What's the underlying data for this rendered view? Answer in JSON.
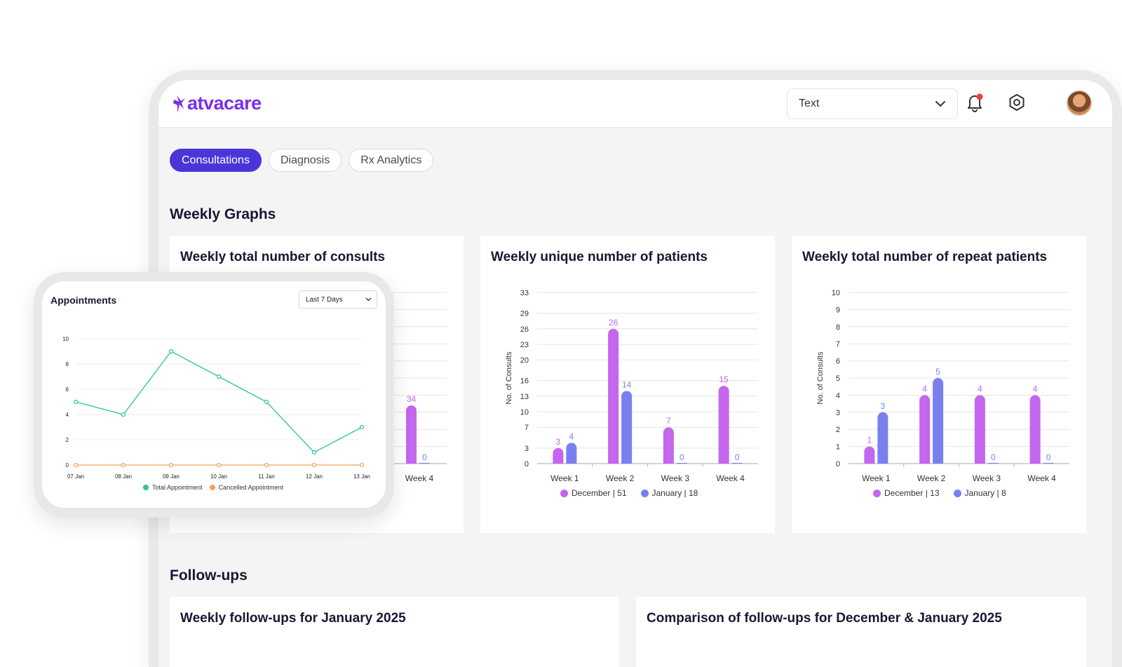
{
  "app": {
    "logo_text": "atvacare"
  },
  "header": {
    "dropdown_value": "Text",
    "icons": [
      "bell-icon",
      "gear-icon",
      "chevron-down-icon"
    ],
    "notification_color": "#ef3b3b"
  },
  "tabs": [
    {
      "label": "Consultations",
      "active": true
    },
    {
      "label": "Diagnosis",
      "active": false
    },
    {
      "label": "Rx Analytics",
      "active": false
    }
  ],
  "sections": {
    "weekly_graphs": "Weekly Graphs",
    "follow_ups": "Follow-ups"
  },
  "colors": {
    "december": "#c466ee",
    "january": "#7a7ff0",
    "total": "#28c78f",
    "cancelled": "#f4a25a",
    "accent": "#4a36d8"
  },
  "cards": {
    "consults": {
      "title": "Weekly total number of consults"
    },
    "unique": {
      "title": "Weekly unique number of patients",
      "legend_dec": "December | 51",
      "legend_jan": "January | 18"
    },
    "repeat": {
      "title": "Weekly total number of repeat patients",
      "legend_dec": "December | 13",
      "legend_jan": "January | 8"
    },
    "followups_jan": {
      "title": "Weekly follow-ups for January 2025"
    },
    "followups_cmp": {
      "title": "Comparison of follow-ups for December & January 2025"
    }
  },
  "appointments": {
    "title": "Appointments",
    "range": "Last 7 Days",
    "legend_total": "Total Appointment",
    "legend_cancelled": "Cancelled Appointment"
  },
  "chart_data": [
    {
      "type": "bar",
      "title": "Weekly total number of consults",
      "categories": [
        "Week 4"
      ],
      "series": [
        {
          "name": "December",
          "values": [
            34
          ]
        },
        {
          "name": "January",
          "values": [
            0
          ]
        }
      ]
    },
    {
      "type": "bar",
      "title": "Weekly unique number of patients",
      "ylabel": "No. of Consults",
      "yticks": [
        0,
        3,
        7,
        10,
        13,
        16,
        20,
        23,
        26,
        29,
        33
      ],
      "ylim": [
        0,
        33
      ],
      "categories": [
        "Week 1",
        "Week 2",
        "Week 3",
        "Week 4"
      ],
      "series": [
        {
          "name": "December",
          "values": [
            3,
            26,
            7,
            15
          ]
        },
        {
          "name": "January",
          "values": [
            4,
            14,
            0,
            0
          ]
        }
      ]
    },
    {
      "type": "bar",
      "title": "Weekly total number of repeat patients",
      "ylabel": "No. of Consults",
      "yticks": [
        0,
        1,
        2,
        3,
        4,
        5,
        6,
        7,
        8,
        9,
        10
      ],
      "ylim": [
        0,
        10
      ],
      "categories": [
        "Week 1",
        "Week 2",
        "Week 3",
        "Week 4"
      ],
      "series": [
        {
          "name": "December",
          "values": [
            1,
            4,
            4,
            4
          ]
        },
        {
          "name": "January",
          "values": [
            3,
            5,
            0,
            0
          ]
        }
      ]
    },
    {
      "type": "line",
      "title": "Appointments",
      "x": [
        "07 Jan",
        "08 Jan",
        "09 Jan",
        "10 Jan",
        "11 Jan",
        "12 Jan",
        "13 Jan"
      ],
      "yticks": [
        0,
        2,
        4,
        6,
        8,
        10
      ],
      "ylim": [
        0,
        10
      ],
      "series": [
        {
          "name": "Total Appointment",
          "values": [
            5,
            4,
            9,
            7,
            5,
            1,
            3
          ]
        },
        {
          "name": "Cancelled Appointment",
          "values": [
            0,
            0,
            0,
            0,
            0,
            0,
            0
          ]
        }
      ]
    }
  ]
}
